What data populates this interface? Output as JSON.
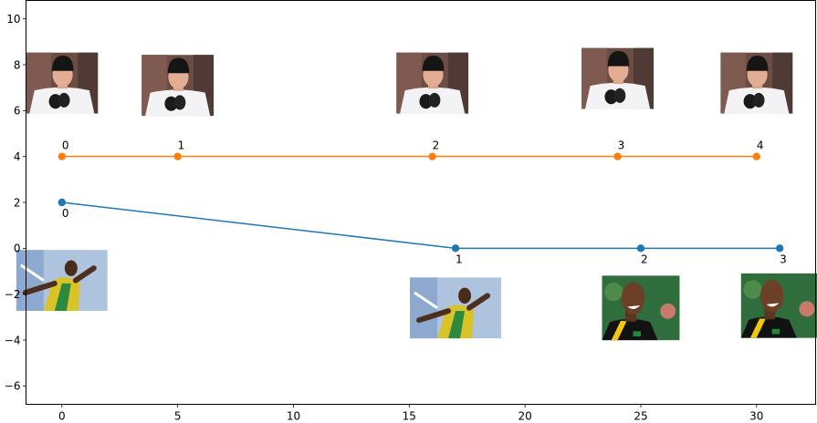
{
  "chart_data": {
    "type": "line",
    "title": "",
    "xlabel": "",
    "ylabel": "",
    "xlim": [
      -1.55,
      32.55
    ],
    "ylim": [
      -6.8,
      10.8
    ],
    "x_ticks": [
      0,
      5,
      10,
      15,
      20,
      25,
      30
    ],
    "y_ticks": [
      -6,
      -4,
      -2,
      0,
      2,
      4,
      6,
      8,
      10
    ],
    "grid": false,
    "legend": "none",
    "series": [
      {
        "color": "#1f77b4",
        "x": [
          0,
          17,
          25,
          31
        ],
        "y": [
          2,
          0,
          0,
          0
        ],
        "point_labels": [
          "0",
          "1",
          "2",
          "3"
        ]
      },
      {
        "color": "#ff7f0e",
        "x": [
          0,
          5,
          16,
          24,
          30
        ],
        "y": [
          4,
          4,
          4,
          4,
          4
        ],
        "point_labels": [
          "0",
          "1",
          "2",
          "3",
          "4"
        ]
      }
    ],
    "thumbnails": [
      {
        "series": 0,
        "point": 0,
        "subject": "sprinter-in-green-and-yellow",
        "x": 0,
        "y": -1.4
      },
      {
        "series": 0,
        "point": 1,
        "subject": "sprinter-in-green-and-yellow",
        "x": 17,
        "y": -2.6
      },
      {
        "series": 0,
        "point": 2,
        "subject": "sprinter-smiling",
        "x": 25,
        "y": -2.6
      },
      {
        "series": 0,
        "point": 3,
        "subject": "sprinter-smiling",
        "x": 31,
        "y": -2.5
      },
      {
        "series": 1,
        "point": 0,
        "subject": "man-in-black-beanie",
        "x": 0,
        "y": 7.2
      },
      {
        "series": 1,
        "point": 1,
        "subject": "man-in-black-beanie",
        "x": 5,
        "y": 7.1
      },
      {
        "series": 1,
        "point": 2,
        "subject": "man-in-black-beanie",
        "x": 16,
        "y": 7.2
      },
      {
        "series": 1,
        "point": 3,
        "subject": "man-in-black-beanie",
        "x": 24,
        "y": 7.4
      },
      {
        "series": 1,
        "point": 4,
        "subject": "man-in-black-beanie",
        "x": 30,
        "y": 7.2
      }
    ]
  }
}
